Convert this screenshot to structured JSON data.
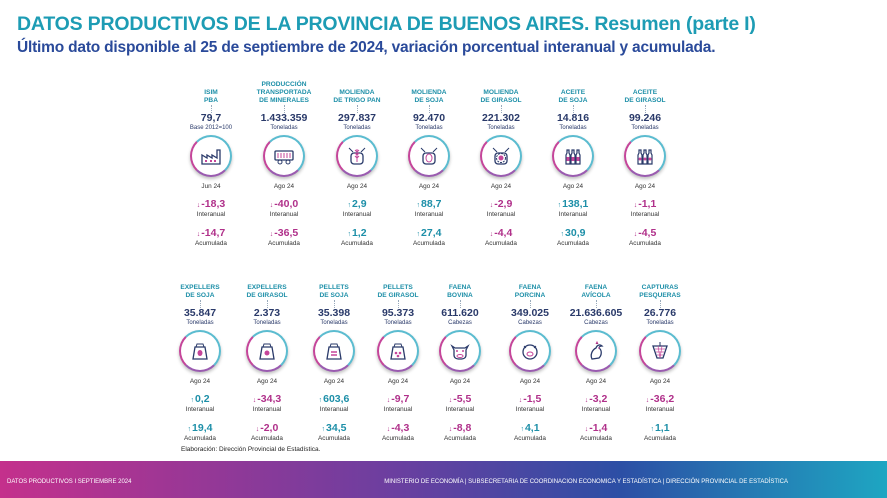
{
  "title": "DATOS PRODUCTIVOS DE LA PROVINCIA DE BUENOS AIRES. Resumen (parte I)",
  "subtitle": "Último dato disponible al 25 de septiembre de 2024, variación porcentual interanual y acumulada.",
  "labels": {
    "interanual": "Interanual",
    "acumulada": "Acumulada"
  },
  "row1": [
    {
      "l1": "ISIM",
      "l2": "PBA",
      "l3": "",
      "value": "79,7",
      "unit": "Base 2012=100",
      "icon": "factory-icon",
      "date": "Jun 24",
      "inter": "-18,3",
      "acum": "-14,7"
    },
    {
      "l1": "PRODUCCIÓN",
      "l2": "TRANSPORTADA",
      "l3": "DE MINERALES",
      "value": "1.433.359",
      "unit": "Toneladas",
      "icon": "mineral-cart-icon",
      "date": "Ago 24",
      "inter": "-40,0",
      "acum": "-36,5"
    },
    {
      "l1": "MOLIENDA",
      "l2": "DE TRIGO PAN",
      "l3": "",
      "value": "297.837",
      "unit": "Toneladas",
      "icon": "wheat-mill-icon",
      "date": "Ago 24",
      "inter": "2,9",
      "acum": "1,2"
    },
    {
      "l1": "MOLIENDA",
      "l2": "DE SOJA",
      "l3": "",
      "value": "92.470",
      "unit": "Toneladas",
      "icon": "soy-mill-icon",
      "date": "Ago 24",
      "inter": "88,7",
      "acum": "27,4"
    },
    {
      "l1": "MOLIENDA",
      "l2": "DE GIRASOL",
      "l3": "",
      "value": "221.302",
      "unit": "Toneladas",
      "icon": "sunflower-mill-icon",
      "date": "Ago 24",
      "inter": "-2,9",
      "acum": "-4,4"
    },
    {
      "l1": "ACEITE",
      "l2": "DE SOJA",
      "l3": "",
      "value": "14.816",
      "unit": "Toneladas",
      "icon": "soy-oil-bottles-icon",
      "date": "Ago 24",
      "inter": "138,1",
      "acum": "30,9"
    },
    {
      "l1": "ACEITE",
      "l2": "DE GIRASOL",
      "l3": "",
      "value": "99.246",
      "unit": "Toneladas",
      "icon": "sunflower-oil-bottles-icon",
      "date": "Ago 24",
      "inter": "-1,1",
      "acum": "-4,5"
    }
  ],
  "row2": [
    {
      "l1": "EXPELLERS",
      "l2": "DE SOJA",
      "l3": "",
      "value": "35.847",
      "unit": "Toneladas",
      "icon": "soy-sack-icon",
      "date": "Ago 24",
      "inter": "0,2",
      "acum": "19,4"
    },
    {
      "l1": "EXPELLERS",
      "l2": "DE GIRASOL",
      "l3": "",
      "value": "2.373",
      "unit": "Toneladas",
      "icon": "sunflower-sack-icon",
      "date": "Ago 24",
      "inter": "-34,3",
      "acum": "-2,0"
    },
    {
      "l1": "PELLETS",
      "l2": "DE SOJA",
      "l3": "",
      "value": "35.398",
      "unit": "Toneladas",
      "icon": "soy-pellet-sack-icon",
      "date": "Ago 24",
      "inter": "603,6",
      "acum": "34,5"
    },
    {
      "l1": "PELLETS",
      "l2": "DE GIRASOL",
      "l3": "",
      "value": "95.373",
      "unit": "Toneladas",
      "icon": "sunflower-pellet-sack-icon",
      "date": "Ago 24",
      "inter": "-9,7",
      "acum": "-4,3"
    },
    {
      "l1": "FAENA",
      "l2": "BOVINA",
      "l3": "",
      "value": "611.620",
      "unit": "Cabezas",
      "icon": "cow-icon",
      "date": "Ago 24",
      "inter": "-5,5",
      "acum": "-8,8"
    },
    {
      "l1": "FAENA",
      "l2": "PORCINA",
      "l3": "",
      "value": "349.025",
      "unit": "Cabezas",
      "icon": "pig-icon",
      "date": "Ago 24",
      "inter": "-1,5",
      "acum": "4,1"
    },
    {
      "l1": "FAENA",
      "l2": "AVÍCOLA",
      "l3": "",
      "value": "21.636.605",
      "unit": "Cabezas",
      "icon": "chicken-icon",
      "date": "Ago 24",
      "inter": "-3,2",
      "acum": "-1,4"
    },
    {
      "l1": "CAPTURAS",
      "l2": "PESQUERAS",
      "l3": "",
      "value": "26.776",
      "unit": "Toneladas",
      "icon": "fishing-net-icon",
      "date": "Ago 24",
      "inter": "-36,2",
      "acum": "1,1"
    }
  ],
  "source": "Elaboración: Dirección Provincial de Estadística.",
  "footer_left": "DATOS PRODUCTIVOS I SEPTIEMBRE 2024",
  "footer_right": "MINISTERIO DE ECONOMÍA | SUBSECRETARIA DE COORDINACION ECONOMICA Y ESTADÍSTICA | DIRECCIÓN PROVINCIAL DE ESTADÍSTICA",
  "colors": {
    "teal": "#1d9cb4",
    "navy": "#2a4a9a",
    "magenta": "#b0308a"
  }
}
